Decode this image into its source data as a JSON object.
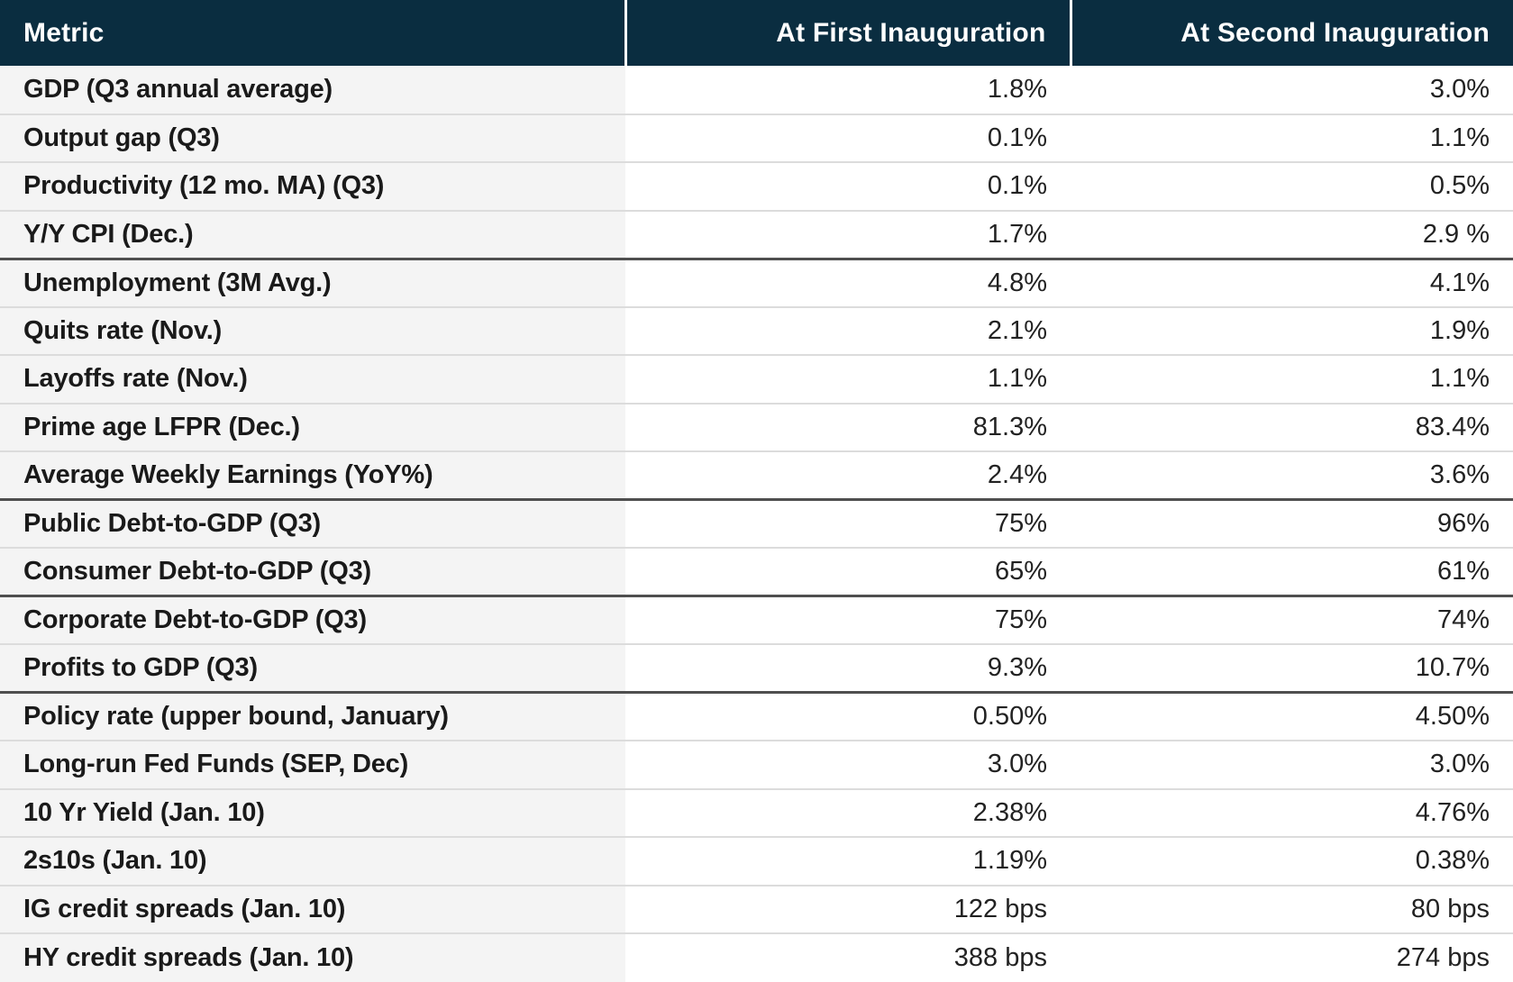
{
  "chart_data": {
    "type": "table",
    "columns": [
      "Metric",
      "At First Inauguration",
      "At Second Inauguration"
    ],
    "rows": [
      [
        "GDP (Q3 annual average)",
        "1.8%",
        "3.0%"
      ],
      [
        "Output gap (Q3)",
        "0.1%",
        "1.1%"
      ],
      [
        "Productivity (12 mo. MA) (Q3)",
        "0.1%",
        "0.5%"
      ],
      [
        "Y/Y CPI (Dec.)",
        "1.7%",
        "2.9 %"
      ],
      [
        "Unemployment (3M Avg.)",
        "4.8%",
        "4.1%"
      ],
      [
        "Quits rate (Nov.)",
        "2.1%",
        "1.9%"
      ],
      [
        "Layoffs rate (Nov.)",
        "1.1%",
        "1.1%"
      ],
      [
        "Prime age LFPR (Dec.)",
        "81.3%",
        "83.4%"
      ],
      [
        "Average Weekly Earnings (YoY%)",
        "2.4%",
        "3.6%"
      ],
      [
        "Public Debt-to-GDP (Q3)",
        "75%",
        "96%"
      ],
      [
        "Consumer Debt-to-GDP (Q3)",
        "65%",
        "61%"
      ],
      [
        "Corporate Debt-to-GDP (Q3)",
        "75%",
        "74%"
      ],
      [
        "Profits to GDP (Q3)",
        "9.3%",
        "10.7%"
      ],
      [
        "Policy rate (upper bound, January)",
        "0.50%",
        "4.50%"
      ],
      [
        "Long-run Fed Funds (SEP, Dec)",
        "3.0%",
        "3.0%"
      ],
      [
        "10 Yr Yield (Jan. 10)",
        "2.38%",
        "4.76%"
      ],
      [
        "2s10s (Jan. 10)",
        "1.19%",
        "0.38%"
      ],
      [
        "IG credit spreads (Jan. 10)",
        "122 bps",
        "80 bps"
      ],
      [
        "HY credit spreads (Jan. 10)",
        "388 bps",
        "274 bps"
      ]
    ],
    "section_breaks_after": [
      3,
      8,
      10,
      12
    ],
    "legend_position": "none",
    "grid": "horizontal-lines"
  },
  "colors": {
    "header_bg": "#0a2d40",
    "header_text": "#ffffff",
    "metric_column_bg": "#f4f4f4",
    "value_column_bg": "#ffffff",
    "row_border": "#dcdcdc",
    "group_border": "#4f4f4f",
    "label_text": "#1a1a1a",
    "value_text": "#222222"
  }
}
